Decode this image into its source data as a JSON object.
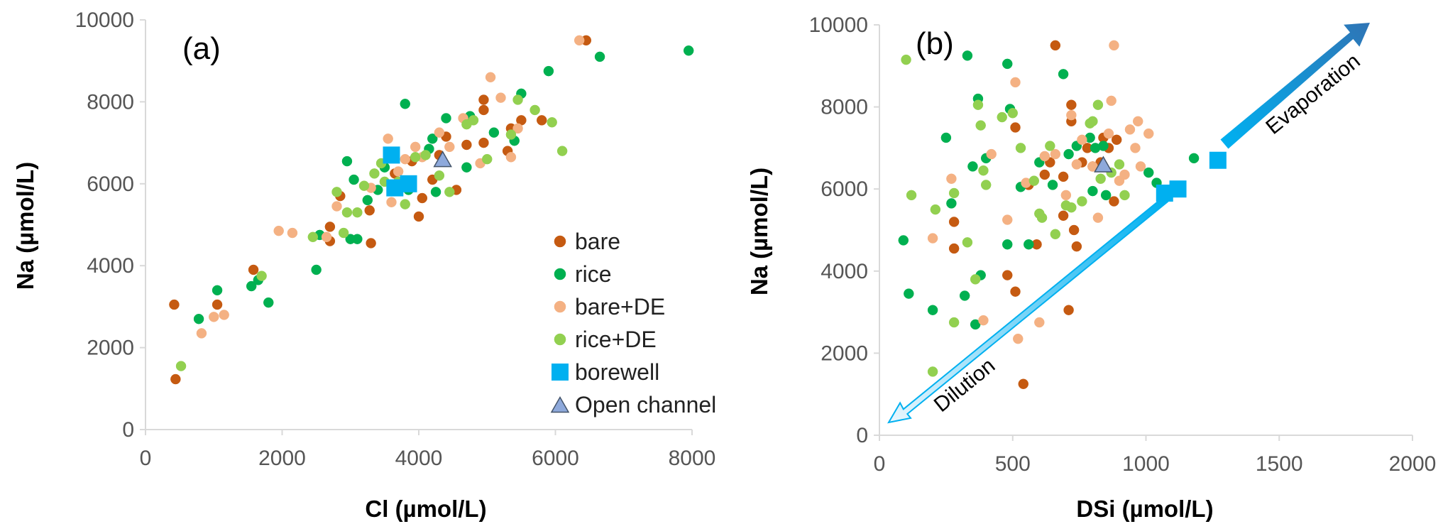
{
  "chart_data": [
    {
      "type": "scatter",
      "panel_label": "(a)",
      "xlabel": "Cl (µmol/L)",
      "ylabel": "Na (µmol/L)",
      "xlim": [
        0,
        8000
      ],
      "ylim": [
        0,
        10000
      ],
      "x_ticks": [
        0,
        2000,
        4000,
        6000,
        8000
      ],
      "y_ticks": [
        0,
        2000,
        4000,
        6000,
        8000,
        10000
      ],
      "grid": false,
      "legend_position": "bottom-right",
      "colors": {
        "bare": "#C55A11",
        "rice": "#00B050",
        "bare+DE": "#F4B183",
        "rice+DE": "#92D050",
        "borewell": "#00B0F0",
        "Open channel": "#8EA9DB"
      },
      "series": [
        {
          "name": "bare",
          "marker": "circle",
          "color": "#C55A11",
          "points": [
            [
              420,
              3050
            ],
            [
              440,
              1230
            ],
            [
              1050,
              3050
            ],
            [
              1580,
              3900
            ],
            [
              2700,
              4950
            ],
            [
              2700,
              4600
            ],
            [
              2850,
              5700
            ],
            [
              3280,
              5350
            ],
            [
              3300,
              4550
            ],
            [
              3650,
              6250
            ],
            [
              3900,
              6550
            ],
            [
              4000,
              5200
            ],
            [
              4050,
              5650
            ],
            [
              4200,
              6100
            ],
            [
              4300,
              6700
            ],
            [
              4400,
              7150
            ],
            [
              4550,
              5850
            ],
            [
              4700,
              6950
            ],
            [
              4950,
              7800
            ],
            [
              4950,
              8050
            ],
            [
              4950,
              7000
            ],
            [
              5300,
              6800
            ],
            [
              5350,
              7350
            ],
            [
              5500,
              7550
            ],
            [
              5800,
              7550
            ],
            [
              6450,
              9500
            ]
          ]
        },
        {
          "name": "rice",
          "marker": "circle",
          "color": "#00B050",
          "points": [
            [
              780,
              2700
            ],
            [
              1050,
              3400
            ],
            [
              1550,
              3500
            ],
            [
              1650,
              3650
            ],
            [
              1800,
              3100
            ],
            [
              2500,
              3900
            ],
            [
              2550,
              4750
            ],
            [
              2950,
              6550
            ],
            [
              3000,
              4650
            ],
            [
              3050,
              6100
            ],
            [
              3100,
              4650
            ],
            [
              3250,
              5600
            ],
            [
              3400,
              5850
            ],
            [
              3500,
              6400
            ],
            [
              3800,
              7950
            ],
            [
              3850,
              5850
            ],
            [
              4150,
              6850
            ],
            [
              4200,
              7100
            ],
            [
              4250,
              5800
            ],
            [
              4400,
              7600
            ],
            [
              4700,
              6400
            ],
            [
              4750,
              7650
            ],
            [
              5100,
              7250
            ],
            [
              5400,
              7050
            ],
            [
              5500,
              8200
            ],
            [
              5900,
              8750
            ],
            [
              6650,
              9100
            ],
            [
              7950,
              9250
            ]
          ]
        },
        {
          "name": "bare+DE",
          "marker": "circle",
          "color": "#F4B183",
          "points": [
            [
              820,
              2350
            ],
            [
              1000,
              2750
            ],
            [
              1150,
              2800
            ],
            [
              1950,
              4850
            ],
            [
              2150,
              4800
            ],
            [
              2650,
              4700
            ],
            [
              2800,
              5450
            ],
            [
              3300,
              5900
            ],
            [
              3550,
              7100
            ],
            [
              3600,
              5550
            ],
            [
              3700,
              6300
            ],
            [
              3800,
              6600
            ],
            [
              3950,
              6900
            ],
            [
              4050,
              6650
            ],
            [
              4300,
              7250
            ],
            [
              4450,
              6900
            ],
            [
              4650,
              7600
            ],
            [
              4900,
              6500
            ],
            [
              5050,
              8600
            ],
            [
              5200,
              8100
            ],
            [
              5350,
              6650
            ],
            [
              5450,
              7350
            ],
            [
              6350,
              9500
            ]
          ]
        },
        {
          "name": "rice+DE",
          "marker": "circle",
          "color": "#92D050",
          "points": [
            [
              520,
              1550
            ],
            [
              1700,
              3750
            ],
            [
              2450,
              4700
            ],
            [
              2800,
              5800
            ],
            [
              2900,
              4800
            ],
            [
              2950,
              5300
            ],
            [
              3100,
              5300
            ],
            [
              3200,
              5950
            ],
            [
              3350,
              6250
            ],
            [
              3450,
              6500
            ],
            [
              3500,
              6050
            ],
            [
              3700,
              6050
            ],
            [
              3800,
              5500
            ],
            [
              3950,
              6650
            ],
            [
              4100,
              6700
            ],
            [
              4300,
              6200
            ],
            [
              4450,
              5800
            ],
            [
              4700,
              7450
            ],
            [
              4800,
              7550
            ],
            [
              5000,
              6600
            ],
            [
              5350,
              7200
            ],
            [
              5450,
              8050
            ],
            [
              5700,
              7800
            ],
            [
              5950,
              7500
            ],
            [
              6100,
              6800
            ]
          ]
        },
        {
          "name": "borewell",
          "marker": "square",
          "color": "#00B0F0",
          "points": [
            [
              3600,
              6700
            ],
            [
              3650,
              5900
            ],
            [
              3850,
              6000
            ]
          ]
        },
        {
          "name": "Open channel",
          "marker": "triangle",
          "color": "#8EA9DB",
          "points": [
            [
              4350,
              6600
            ]
          ]
        }
      ]
    },
    {
      "type": "scatter",
      "panel_label": "(b)",
      "xlabel": "DSi (µmol/L)",
      "ylabel": "Na (µmol/L)",
      "xlim": [
        0,
        2000
      ],
      "ylim": [
        0,
        10000
      ],
      "x_ticks": [
        0,
        500,
        1000,
        1500,
        2000
      ],
      "y_ticks": [
        0,
        2000,
        4000,
        6000,
        8000,
        10000
      ],
      "grid": false,
      "annotations": [
        {
          "text": "Dilution",
          "direction": "down-left",
          "color": "#00B0F0"
        },
        {
          "text": "Evaporation",
          "direction": "up-right",
          "color": "#2E75B6"
        }
      ],
      "series": [
        {
          "name": "bare",
          "marker": "circle",
          "color": "#C55A11",
          "points": [
            [
              280,
              5200
            ],
            [
              280,
              4550
            ],
            [
              480,
              3900
            ],
            [
              510,
              3500
            ],
            [
              510,
              7500
            ],
            [
              540,
              1250
            ],
            [
              560,
              6100
            ],
            [
              590,
              4650
            ],
            [
              620,
              6350
            ],
            [
              640,
              6650
            ],
            [
              660,
              9500
            ],
            [
              690,
              6300
            ],
            [
              690,
              5350
            ],
            [
              710,
              3050
            ],
            [
              720,
              8050
            ],
            [
              720,
              7650
            ],
            [
              730,
              5000
            ],
            [
              740,
              4600
            ],
            [
              760,
              6650
            ],
            [
              780,
              7000
            ],
            [
              800,
              6550
            ],
            [
              830,
              6650
            ],
            [
              840,
              7250
            ],
            [
              860,
              7000
            ],
            [
              880,
              5700
            ],
            [
              890,
              7200
            ]
          ]
        },
        {
          "name": "rice",
          "marker": "circle",
          "color": "#00B050",
          "points": [
            [
              90,
              4750
            ],
            [
              110,
              3450
            ],
            [
              200,
              3050
            ],
            [
              250,
              7250
            ],
            [
              270,
              5650
            ],
            [
              320,
              3400
            ],
            [
              330,
              9250
            ],
            [
              350,
              6550
            ],
            [
              360,
              2700
            ],
            [
              370,
              8200
            ],
            [
              380,
              3900
            ],
            [
              400,
              6750
            ],
            [
              480,
              9050
            ],
            [
              480,
              4650
            ],
            [
              490,
              7950
            ],
            [
              530,
              6050
            ],
            [
              560,
              4650
            ],
            [
              600,
              6650
            ],
            [
              650,
              6100
            ],
            [
              690,
              8800
            ],
            [
              710,
              6850
            ],
            [
              740,
              7050
            ],
            [
              790,
              7250
            ],
            [
              800,
              5950
            ],
            [
              810,
              7000
            ],
            [
              840,
              7050
            ],
            [
              850,
              5850
            ],
            [
              1010,
              6400
            ],
            [
              1040,
              6150
            ],
            [
              1180,
              6750
            ]
          ]
        },
        {
          "name": "bare+DE",
          "marker": "circle",
          "color": "#F4B183",
          "points": [
            [
              200,
              4800
            ],
            [
              270,
              6250
            ],
            [
              390,
              2800
            ],
            [
              420,
              6850
            ],
            [
              480,
              5250
            ],
            [
              510,
              8600
            ],
            [
              520,
              2350
            ],
            [
              550,
              6150
            ],
            [
              600,
              2750
            ],
            [
              620,
              6800
            ],
            [
              660,
              6850
            ],
            [
              700,
              5850
            ],
            [
              720,
              7800
            ],
            [
              740,
              6600
            ],
            [
              760,
              7200
            ],
            [
              800,
              6550
            ],
            [
              820,
              5300
            ],
            [
              860,
              7350
            ],
            [
              870,
              8150
            ],
            [
              880,
              9500
            ],
            [
              900,
              6200
            ],
            [
              920,
              6350
            ],
            [
              940,
              7450
            ],
            [
              960,
              7000
            ],
            [
              970,
              7650
            ],
            [
              980,
              6550
            ],
            [
              1010,
              7350
            ],
            [
              1070,
              5900
            ]
          ]
        },
        {
          "name": "rice+DE",
          "marker": "circle",
          "color": "#92D050",
          "points": [
            [
              100,
              9150
            ],
            [
              120,
              5850
            ],
            [
              200,
              1550
            ],
            [
              210,
              5500
            ],
            [
              280,
              5900
            ],
            [
              280,
              2750
            ],
            [
              330,
              4700
            ],
            [
              360,
              3800
            ],
            [
              370,
              8050
            ],
            [
              380,
              7550
            ],
            [
              390,
              6450
            ],
            [
              400,
              6100
            ],
            [
              460,
              7750
            ],
            [
              500,
              7850
            ],
            [
              530,
              7000
            ],
            [
              580,
              6200
            ],
            [
              600,
              5400
            ],
            [
              610,
              5300
            ],
            [
              640,
              7050
            ],
            [
              660,
              4900
            ],
            [
              700,
              5600
            ],
            [
              720,
              5550
            ],
            [
              760,
              5700
            ],
            [
              790,
              7600
            ],
            [
              800,
              7650
            ],
            [
              820,
              8050
            ],
            [
              830,
              6250
            ],
            [
              870,
              6400
            ],
            [
              900,
              6600
            ],
            [
              920,
              5850
            ]
          ]
        },
        {
          "name": "borewell",
          "marker": "square",
          "color": "#00B0F0",
          "points": [
            [
              1070,
              5900
            ],
            [
              1120,
              6000
            ],
            [
              1270,
              6700
            ]
          ]
        },
        {
          "name": "Open channel",
          "marker": "triangle",
          "color": "#8EA9DB",
          "points": [
            [
              840,
              6600
            ]
          ]
        }
      ]
    }
  ]
}
